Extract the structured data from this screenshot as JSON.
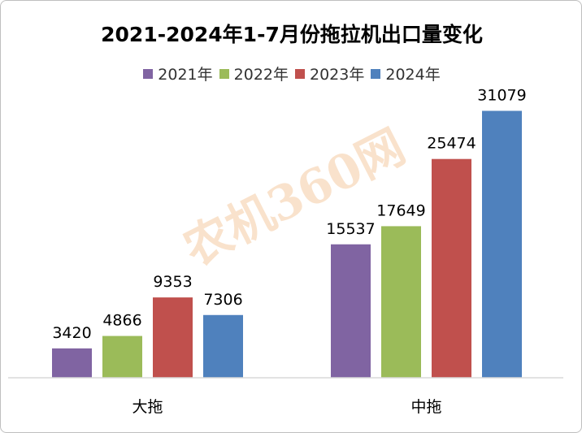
{
  "chart_data": {
    "type": "bar",
    "title": "2021-2024年1-7月份拖拉机出口量变化",
    "categories": [
      "大拖",
      "中拖"
    ],
    "series": [
      {
        "name": "2021年",
        "color": "#8064a2",
        "values": [
          3420,
          15537
        ]
      },
      {
        "name": "2022年",
        "color": "#9bbb59",
        "values": [
          4866,
          17649
        ]
      },
      {
        "name": "2023年",
        "color": "#c0504d",
        "values": [
          9353,
          25474
        ]
      },
      {
        "name": "2024年",
        "color": "#4f81bd",
        "values": [
          7306,
          31079
        ]
      }
    ],
    "ylim": [
      0,
      35000
    ],
    "grid": false,
    "legend_position": "top"
  },
  "watermark": {
    "text": "农机360网"
  }
}
